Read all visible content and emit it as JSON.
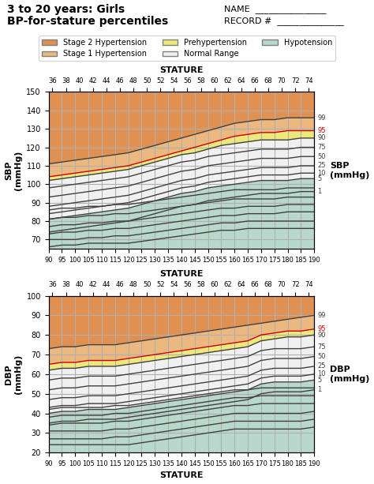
{
  "title": "3 to 20 years: Girls",
  "subtitle": "BP-for-stature percentiles",
  "annotations": [
    "NAME  ________________",
    "RECORD #  _______________"
  ],
  "legend": "upper center",
  "zones": [
    {
      "name": "Stage 2 Hypertension",
      "color": "#E09050",
      "lower": "99",
      "upper": null
    },
    {
      "name": "Stage 1 Hypertension",
      "color": "#EBB880",
      "lower": "95",
      "upper": "99"
    },
    {
      "name": "Prehypertension",
      "color": "#EDE87A",
      "lower": "90",
      "upper": "95"
    },
    {
      "name": "Normal Range",
      "color": "#F0F0F0",
      "lower": "5",
      "upper": "90"
    },
    {
      "name": "Hypotension",
      "color": "#B8D8CC",
      "lower": null,
      "upper": "5"
    }
  ],
  "chart_data": [
    {
      "type": "line",
      "ylabel": "SBP\n(mmHg)",
      "x2label": "STATURE",
      "annotations": [
        "SBP\n(mmHg)"
      ],
      "grid": true,
      "x": [
        90,
        95,
        100,
        105,
        110,
        115,
        120,
        125,
        130,
        135,
        140,
        145,
        150,
        155,
        160,
        165,
        170,
        175,
        180,
        185,
        190
      ],
      "xlim": [
        90,
        190
      ],
      "xticks": [
        90,
        95,
        100,
        105,
        110,
        115,
        120,
        125,
        130,
        135,
        140,
        145,
        150,
        155,
        160,
        165,
        170,
        175,
        180,
        185,
        190
      ],
      "x2ticks": [
        {
          "value": 91.44,
          "label": "36"
        },
        {
          "value": 96.52,
          "label": "38"
        },
        {
          "value": 101.6,
          "label": "40"
        },
        {
          "value": 106.68,
          "label": "42"
        },
        {
          "value": 111.76,
          "label": "44"
        },
        {
          "value": 116.84,
          "label": "46"
        },
        {
          "value": 121.92,
          "label": "48"
        },
        {
          "value": 127,
          "label": "50"
        },
        {
          "value": 132.08,
          "label": "52"
        },
        {
          "value": 137.16,
          "label": "54"
        },
        {
          "value": 142.24,
          "label": "56"
        },
        {
          "value": 147.32,
          "label": "58"
        },
        {
          "value": 152.4,
          "label": "60"
        },
        {
          "value": 157.48,
          "label": "62"
        },
        {
          "value": 162.56,
          "label": "64"
        },
        {
          "value": 167.64,
          "label": "66"
        },
        {
          "value": 172.72,
          "label": "68"
        },
        {
          "value": 177.8,
          "label": "70"
        },
        {
          "value": 182.88,
          "label": "72"
        },
        {
          "value": 187.96,
          "label": "74"
        }
      ],
      "ylim": [
        65,
        150
      ],
      "yticks": [
        70,
        80,
        90,
        100,
        110,
        120,
        130,
        140,
        150
      ],
      "series": [
        {
          "name": "99",
          "color": "#404040",
          "values": [
            111,
            112,
            113,
            114,
            115,
            116,
            117,
            119,
            121,
            123,
            125,
            127,
            129,
            131,
            133,
            134,
            135,
            135,
            136,
            136,
            136
          ]
        },
        {
          "name": "95",
          "color": "#CC0000",
          "values": [
            104,
            105,
            106,
            107,
            108,
            109,
            110,
            112,
            114,
            116,
            118,
            120,
            122,
            124,
            126,
            127,
            128,
            128,
            129,
            129,
            129
          ]
        },
        {
          "name": "90",
          "color": "#404040",
          "values": [
            102,
            103,
            104,
            105,
            106,
            107,
            108,
            110,
            112,
            114,
            116,
            117,
            119,
            121,
            122,
            123,
            124,
            124,
            124,
            125,
            125
          ]
        },
        {
          "name": "75",
          "color": "#404040",
          "values": [
            98,
            99,
            100,
            101,
            102,
            103,
            104,
            106,
            108,
            110,
            112,
            113,
            115,
            116,
            117,
            118,
            119,
            119,
            119,
            120,
            120
          ]
        },
        {
          "name": "50",
          "color": "#404040",
          "values": [
            93,
            94,
            95,
            96,
            97,
            98,
            99,
            101,
            103,
            105,
            107,
            108,
            110,
            111,
            112,
            113,
            114,
            114,
            114,
            115,
            115
          ]
        },
        {
          "name": "25",
          "color": "#404040",
          "values": [
            88,
            89,
            90,
            91,
            92,
            93,
            94,
            96,
            98,
            100,
            102,
            103,
            105,
            106,
            107,
            108,
            109,
            109,
            109,
            110,
            110
          ]
        },
        {
          "name": "10",
          "color": "#404040",
          "values": [
            84,
            85,
            86,
            87,
            88,
            89,
            90,
            92,
            94,
            96,
            98,
            99,
            101,
            102,
            103,
            104,
            105,
            105,
            105,
            106,
            106
          ]
        },
        {
          "name": "5",
          "color": "#404040",
          "values": [
            81,
            82,
            83,
            84,
            85,
            86,
            87,
            89,
            91,
            93,
            95,
            96,
            98,
            99,
            100,
            101,
            102,
            102,
            102,
            103,
            103
          ]
        },
        {
          "name": "1",
          "color": "#404040",
          "values": [
            74,
            75,
            76,
            77,
            78,
            79,
            80,
            82,
            84,
            86,
            88,
            89,
            91,
            92,
            93,
            94,
            95,
            95,
            95,
            96,
            96
          ]
        },
        {
          "color": "#404040",
          "values": [
            86,
            87,
            87,
            88,
            88,
            89,
            89,
            90,
            91,
            92,
            93,
            94,
            95,
            96,
            97,
            97,
            97,
            97,
            98,
            98,
            98
          ]
        },
        {
          "color": "#404040",
          "values": [
            81,
            82,
            82,
            83,
            83,
            84,
            84,
            85,
            86,
            87,
            88,
            89,
            90,
            91,
            92,
            92,
            92,
            92,
            93,
            93,
            93
          ]
        },
        {
          "color": "#404040",
          "values": [
            77,
            78,
            78,
            79,
            79,
            80,
            80,
            81,
            82,
            83,
            84,
            85,
            86,
            87,
            87,
            88,
            88,
            88,
            89,
            89,
            89
          ]
        },
        {
          "color": "#404040",
          "values": [
            73,
            74,
            74,
            75,
            75,
            76,
            76,
            77,
            78,
            79,
            80,
            81,
            82,
            83,
            83,
            84,
            84,
            84,
            85,
            85,
            85
          ]
        },
        {
          "color": "#404040",
          "values": [
            70,
            70,
            70,
            71,
            71,
            72,
            72,
            73,
            74,
            75,
            76,
            77,
            78,
            79,
            79,
            80,
            80,
            80,
            80,
            80,
            80
          ]
        },
        {
          "color": "#404040",
          "values": [
            66,
            67,
            67,
            68,
            68,
            68,
            68,
            69,
            70,
            71,
            72,
            73,
            74,
            75,
            75,
            76,
            76,
            76,
            76,
            76,
            76
          ]
        }
      ]
    },
    {
      "type": "line",
      "ylabel": "DBP\n(mmHg)",
      "x2label": "STATURE",
      "xlabel": "STATURE",
      "annotations": [
        "DBP\n(mmHg)"
      ],
      "grid": true,
      "x": [
        90,
        95,
        100,
        105,
        110,
        115,
        120,
        125,
        130,
        135,
        140,
        145,
        150,
        155,
        160,
        165,
        170,
        175,
        180,
        185,
        190
      ],
      "xlim": [
        90,
        190
      ],
      "xticks": [
        90,
        95,
        100,
        105,
        110,
        115,
        120,
        125,
        130,
        135,
        140,
        145,
        150,
        155,
        160,
        165,
        170,
        175,
        180,
        185,
        190
      ],
      "x2ticks": [
        {
          "value": 91.44,
          "label": "36"
        },
        {
          "value": 96.52,
          "label": "38"
        },
        {
          "value": 101.6,
          "label": "40"
        },
        {
          "value": 106.68,
          "label": "42"
        },
        {
          "value": 111.76,
          "label": "44"
        },
        {
          "value": 116.84,
          "label": "46"
        },
        {
          "value": 121.92,
          "label": "48"
        },
        {
          "value": 127,
          "label": "50"
        },
        {
          "value": 132.08,
          "label": "52"
        },
        {
          "value": 137.16,
          "label": "54"
        },
        {
          "value": 142.24,
          "label": "56"
        },
        {
          "value": 147.32,
          "label": "58"
        },
        {
          "value": 152.4,
          "label": "60"
        },
        {
          "value": 157.48,
          "label": "62"
        },
        {
          "value": 162.56,
          "label": "64"
        },
        {
          "value": 167.64,
          "label": "66"
        },
        {
          "value": 172.72,
          "label": "68"
        },
        {
          "value": 177.8,
          "label": "70"
        },
        {
          "value": 182.88,
          "label": "72"
        },
        {
          "value": 187.96,
          "label": "74"
        }
      ],
      "ylim": [
        20,
        100
      ],
      "yticks": [
        20,
        30,
        40,
        50,
        60,
        70,
        80,
        90,
        100
      ],
      "series": [
        {
          "name": "99",
          "color": "#404040",
          "values": [
            73,
            74,
            74,
            75,
            75,
            75,
            76,
            77,
            78,
            79,
            80,
            81,
            82,
            83,
            84,
            85,
            86,
            87,
            88,
            89,
            90
          ]
        },
        {
          "name": "95",
          "color": "#CC0000",
          "values": [
            65,
            66,
            66,
            67,
            67,
            67,
            68,
            69,
            70,
            71,
            72,
            73,
            74,
            75,
            76,
            77,
            80,
            81,
            82,
            82,
            83
          ]
        },
        {
          "name": "90",
          "color": "#404040",
          "values": [
            62,
            63,
            63,
            64,
            64,
            64,
            65,
            66,
            67,
            68,
            69,
            70,
            71,
            72,
            73,
            74,
            77,
            78,
            79,
            79,
            80
          ]
        },
        {
          "name": "75",
          "color": "#404040",
          "values": [
            57,
            58,
            58,
            59,
            59,
            59,
            60,
            61,
            62,
            63,
            64,
            65,
            66,
            67,
            68,
            69,
            72,
            73,
            73,
            73,
            74
          ]
        },
        {
          "name": "50",
          "color": "#404040",
          "values": [
            52,
            53,
            53,
            54,
            54,
            54,
            55,
            56,
            57,
            58,
            59,
            60,
            61,
            62,
            63,
            64,
            67,
            68,
            68,
            68,
            69
          ]
        },
        {
          "name": "25",
          "color": "#404040",
          "values": [
            47,
            48,
            48,
            49,
            49,
            49,
            50,
            51,
            52,
            53,
            54,
            55,
            56,
            57,
            58,
            59,
            62,
            63,
            63,
            63,
            64
          ]
        },
        {
          "name": "10",
          "color": "#404040",
          "values": [
            43,
            44,
            44,
            45,
            45,
            45,
            46,
            47,
            48,
            49,
            50,
            51,
            52,
            53,
            54,
            55,
            58,
            59,
            59,
            59,
            60
          ]
        },
        {
          "name": "5",
          "color": "#404040",
          "values": [
            40,
            41,
            41,
            42,
            42,
            42,
            43,
            44,
            45,
            46,
            47,
            48,
            49,
            50,
            51,
            52,
            55,
            56,
            56,
            56,
            57
          ]
        },
        {
          "name": "1",
          "color": "#404040",
          "values": [
            35,
            36,
            36,
            37,
            37,
            37,
            38,
            39,
            40,
            41,
            42,
            43,
            44,
            45,
            46,
            47,
            50,
            51,
            51,
            51,
            52
          ]
        },
        {
          "color": "#404040",
          "values": [
            42,
            43,
            43,
            43,
            43,
            44,
            44,
            45,
            46,
            47,
            48,
            49,
            50,
            51,
            52,
            52,
            53,
            53,
            53,
            53,
            53
          ]
        },
        {
          "color": "#404040",
          "values": [
            38,
            39,
            39,
            39,
            39,
            40,
            40,
            41,
            42,
            43,
            44,
            45,
            46,
            47,
            48,
            48,
            49,
            49,
            49,
            49,
            49
          ]
        },
        {
          "color": "#404040",
          "values": [
            34,
            35,
            35,
            35,
            35,
            36,
            36,
            37,
            38,
            39,
            40,
            41,
            42,
            43,
            44,
            44,
            45,
            45,
            45,
            45,
            45
          ]
        },
        {
          "color": "#404040",
          "values": [
            31,
            31,
            31,
            31,
            31,
            32,
            32,
            33,
            34,
            35,
            36,
            37,
            38,
            39,
            40,
            40,
            40,
            40,
            40,
            40,
            41
          ]
        },
        {
          "color": "#404040",
          "values": [
            27,
            27,
            27,
            27,
            27,
            28,
            28,
            29,
            30,
            31,
            32,
            33,
            34,
            35,
            36,
            36,
            36,
            36,
            36,
            36,
            37
          ]
        },
        {
          "color": "#404040",
          "values": [
            24,
            24,
            24,
            24,
            24,
            24,
            24,
            25,
            26,
            27,
            28,
            29,
            30,
            31,
            32,
            32,
            32,
            32,
            32,
            32,
            33
          ]
        }
      ]
    }
  ]
}
